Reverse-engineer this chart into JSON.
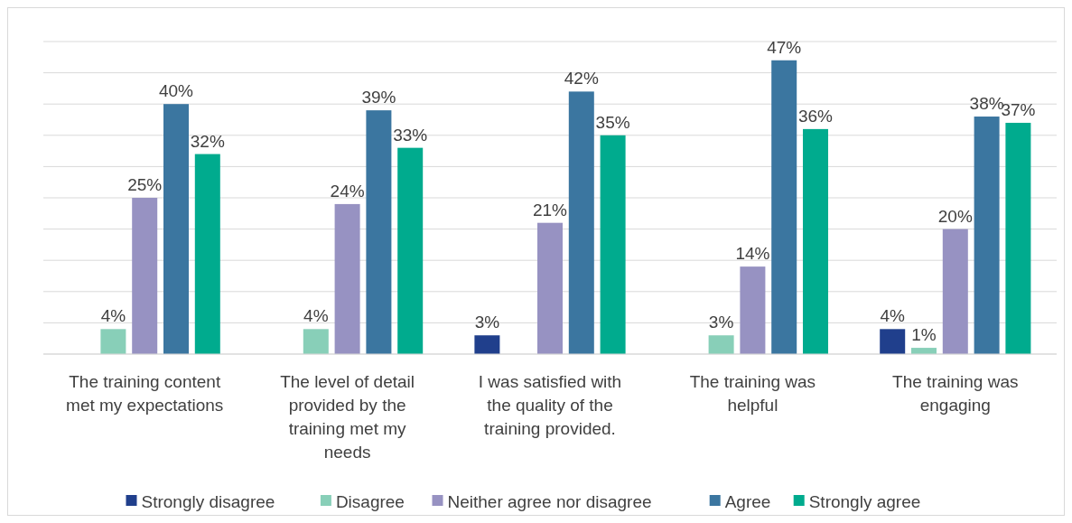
{
  "chart_data": {
    "type": "bar",
    "categories": [
      "The training content met my expectations",
      "The level of detail provided by the training met my needs",
      "I was satisfied with the quality of the training provided.",
      "The training was helpful",
      "The training was engaging"
    ],
    "series": [
      {
        "name": "Strongly disagree",
        "color": "#203f8c",
        "values": [
          null,
          null,
          3,
          null,
          4
        ],
        "value_labels": [
          null,
          null,
          "3%",
          null,
          "4%"
        ]
      },
      {
        "name": "Disagree",
        "color": "#88cfb8",
        "values": [
          4,
          4,
          null,
          3,
          1
        ],
        "value_labels": [
          "4%",
          "4%",
          null,
          "3%",
          "1%"
        ]
      },
      {
        "name": "Neither agree nor disagree",
        "color": "#9792c2",
        "values": [
          25,
          24,
          21,
          14,
          20
        ],
        "value_labels": [
          "25%",
          "24%",
          "21%",
          "14%",
          "20%"
        ]
      },
      {
        "name": "Agree",
        "color": "#3b76a0",
        "values": [
          40,
          39,
          42,
          47,
          38
        ],
        "value_labels": [
          "40%",
          "39%",
          "42%",
          "47%",
          "38%"
        ]
      },
      {
        "name": "Strongly agree",
        "color": "#00ab8e",
        "values": [
          32,
          33,
          35,
          36,
          37
        ],
        "value_labels": [
          "32%",
          "33%",
          "35%",
          "36%",
          "37%"
        ]
      }
    ],
    "ylim": [
      0,
      50
    ],
    "yticks": [
      {
        "value": 0,
        "label": null
      },
      {
        "value": 5,
        "label": null
      },
      {
        "value": 10,
        "label": null
      },
      {
        "value": 15,
        "label": null
      },
      {
        "value": 20,
        "label": null
      },
      {
        "value": 25,
        "label": null
      },
      {
        "value": 30,
        "label": null
      },
      {
        "value": 35,
        "label": null
      },
      {
        "value": 40,
        "label": null
      },
      {
        "value": 45,
        "label": null
      },
      {
        "value": 50,
        "label": null
      }
    ],
    "tick_labels": "x",
    "grid": "y",
    "legend": "bottom"
  }
}
